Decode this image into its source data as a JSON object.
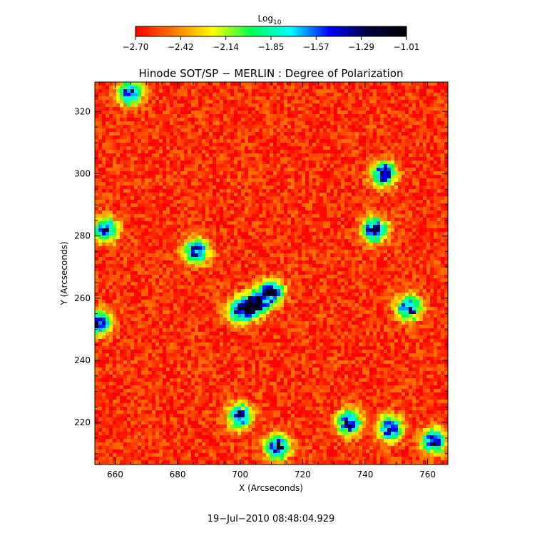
{
  "chart_data": {
    "type": "heatmap",
    "title": "Hinode SOT/SP − MERLIN : Degree of Polarization",
    "xlabel": "X (Arcseconds)",
    "ylabel": "Y (Arcseconds)",
    "xlim": [
      653.5,
      766.5
    ],
    "ylim": [
      206.5,
      329.5
    ],
    "x_ticks": [
      660,
      680,
      700,
      720,
      740,
      760
    ],
    "y_ticks": [
      220,
      240,
      260,
      280,
      300,
      320
    ],
    "colorbar": {
      "title": "Log",
      "title_subscript": "10",
      "ticks": [
        "−2.70",
        "−2.42",
        "−2.14",
        "−1.85",
        "−1.57",
        "−1.29",
        "−1.01"
      ],
      "range": [
        -2.7,
        -1.01
      ],
      "colormap": [
        "#ff0000",
        "#ff7800",
        "#ffff00",
        "#00ff50",
        "#00ffff",
        "#0000ff",
        "#000040",
        "#000000"
      ]
    },
    "regions_high_polarization": [
      {
        "x": 705,
        "y": 258,
        "value": -1.1
      },
      {
        "x": 700,
        "y": 256,
        "value": -1.3
      },
      {
        "x": 710,
        "y": 262,
        "value": -1.25
      },
      {
        "x": 743,
        "y": 282,
        "value": -1.2
      },
      {
        "x": 746,
        "y": 300,
        "value": -1.2
      },
      {
        "x": 700,
        "y": 222,
        "value": -1.3
      },
      {
        "x": 712,
        "y": 212,
        "value": -1.25
      },
      {
        "x": 735,
        "y": 220,
        "value": -1.3
      },
      {
        "x": 748,
        "y": 218,
        "value": -1.25
      },
      {
        "x": 762,
        "y": 214,
        "value": -1.3
      },
      {
        "x": 665,
        "y": 326,
        "value": -1.3
      },
      {
        "x": 686,
        "y": 275,
        "value": -1.3
      },
      {
        "x": 657,
        "y": 282,
        "value": -1.35
      },
      {
        "x": 754,
        "y": 257,
        "value": -1.3
      },
      {
        "x": 655,
        "y": 252,
        "value": -1.35
      }
    ],
    "background_value": -2.6
  },
  "timestamp": "19−Jul−2010 08:48:04.929"
}
